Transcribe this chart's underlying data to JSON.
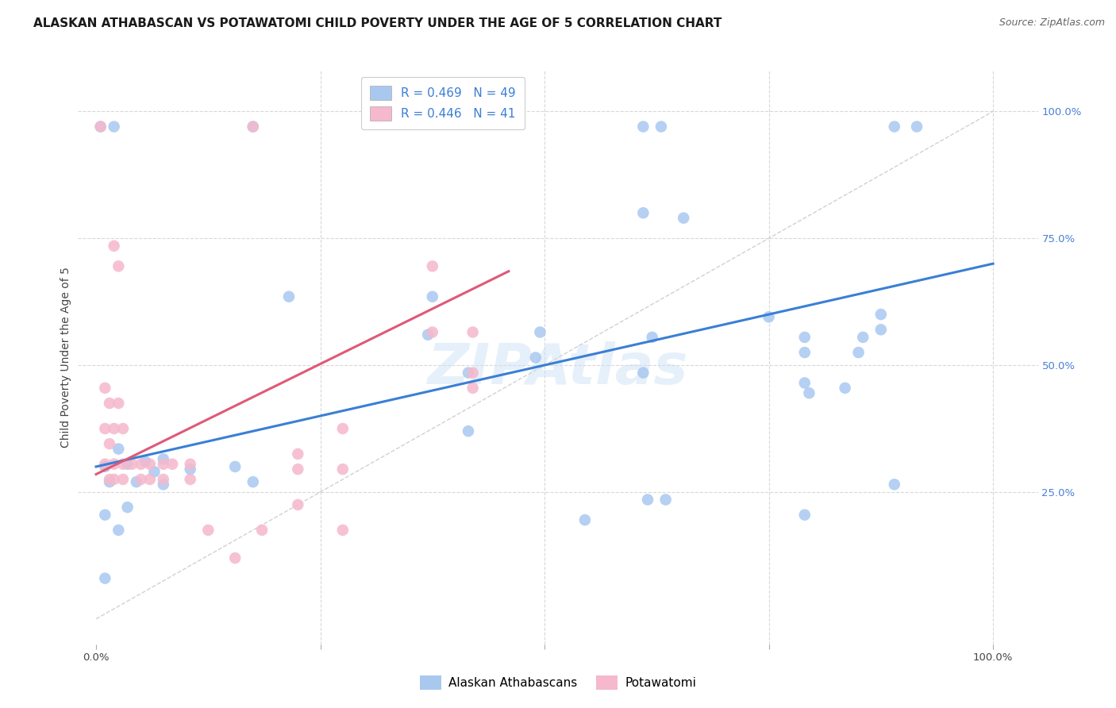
{
  "title": "ALASKAN ATHABASCAN VS POTAWATOMI CHILD POVERTY UNDER THE AGE OF 5 CORRELATION CHART",
  "source": "Source: ZipAtlas.com",
  "ylabel": "Child Poverty Under the Age of 5",
  "background_color": "#ffffff",
  "watermark": "ZIPAtlas",
  "legend_labels": [
    "Alaskan Athabascans",
    "Potawatomi"
  ],
  "legend_r_n": [
    {
      "R": "0.469",
      "N": "49"
    },
    {
      "R": "0.446",
      "N": "41"
    }
  ],
  "blue_color": "#a8c8f0",
  "pink_color": "#f5b8cc",
  "blue_line_color": "#3a7fd5",
  "pink_line_color": "#e05878",
  "diag_line_color": "#cccccc",
  "grid_color": "#d8d8d8",
  "xlim": [
    -0.02,
    1.05
  ],
  "ylim": [
    -0.05,
    1.08
  ],
  "blue_line_x": [
    0.0,
    1.0
  ],
  "blue_line_y": [
    0.3,
    0.7
  ],
  "pink_line_x": [
    0.0,
    0.46
  ],
  "pink_line_y": [
    0.285,
    0.685
  ],
  "blue_scatter": [
    [
      0.005,
      0.97
    ],
    [
      0.02,
      0.97
    ],
    [
      0.175,
      0.97
    ],
    [
      0.61,
      0.97
    ],
    [
      0.63,
      0.97
    ],
    [
      0.89,
      0.97
    ],
    [
      0.915,
      0.97
    ],
    [
      0.61,
      0.8
    ],
    [
      0.655,
      0.79
    ],
    [
      0.215,
      0.635
    ],
    [
      0.375,
      0.635
    ],
    [
      0.37,
      0.56
    ],
    [
      0.495,
      0.565
    ],
    [
      0.49,
      0.515
    ],
    [
      0.415,
      0.485
    ],
    [
      0.61,
      0.485
    ],
    [
      0.75,
      0.595
    ],
    [
      0.62,
      0.555
    ],
    [
      0.79,
      0.555
    ],
    [
      0.855,
      0.555
    ],
    [
      0.875,
      0.57
    ],
    [
      0.79,
      0.525
    ],
    [
      0.85,
      0.525
    ],
    [
      0.835,
      0.455
    ],
    [
      0.875,
      0.6
    ],
    [
      0.615,
      0.235
    ],
    [
      0.635,
      0.235
    ],
    [
      0.79,
      0.465
    ],
    [
      0.795,
      0.445
    ],
    [
      0.89,
      0.265
    ],
    [
      0.545,
      0.195
    ],
    [
      0.79,
      0.205
    ],
    [
      0.415,
      0.37
    ],
    [
      0.01,
      0.3
    ],
    [
      0.025,
      0.335
    ],
    [
      0.035,
      0.305
    ],
    [
      0.01,
      0.205
    ],
    [
      0.025,
      0.175
    ],
    [
      0.035,
      0.22
    ],
    [
      0.015,
      0.27
    ],
    [
      0.045,
      0.27
    ],
    [
      0.055,
      0.31
    ],
    [
      0.065,
      0.29
    ],
    [
      0.075,
      0.315
    ],
    [
      0.075,
      0.265
    ],
    [
      0.105,
      0.295
    ],
    [
      0.155,
      0.3
    ],
    [
      0.175,
      0.27
    ],
    [
      0.01,
      0.08
    ]
  ],
  "pink_scatter": [
    [
      0.005,
      0.97
    ],
    [
      0.175,
      0.97
    ],
    [
      0.375,
      0.695
    ],
    [
      0.02,
      0.735
    ],
    [
      0.025,
      0.695
    ],
    [
      0.375,
      0.565
    ],
    [
      0.42,
      0.565
    ],
    [
      0.42,
      0.485
    ],
    [
      0.42,
      0.455
    ],
    [
      0.01,
      0.455
    ],
    [
      0.015,
      0.425
    ],
    [
      0.025,
      0.425
    ],
    [
      0.01,
      0.375
    ],
    [
      0.015,
      0.345
    ],
    [
      0.02,
      0.375
    ],
    [
      0.03,
      0.375
    ],
    [
      0.01,
      0.305
    ],
    [
      0.015,
      0.275
    ],
    [
      0.02,
      0.305
    ],
    [
      0.02,
      0.275
    ],
    [
      0.03,
      0.305
    ],
    [
      0.03,
      0.275
    ],
    [
      0.04,
      0.305
    ],
    [
      0.05,
      0.305
    ],
    [
      0.06,
      0.305
    ],
    [
      0.05,
      0.275
    ],
    [
      0.06,
      0.275
    ],
    [
      0.075,
      0.305
    ],
    [
      0.085,
      0.305
    ],
    [
      0.075,
      0.275
    ],
    [
      0.105,
      0.305
    ],
    [
      0.105,
      0.275
    ],
    [
      0.125,
      0.175
    ],
    [
      0.155,
      0.12
    ],
    [
      0.185,
      0.175
    ],
    [
      0.225,
      0.295
    ],
    [
      0.225,
      0.325
    ],
    [
      0.225,
      0.225
    ],
    [
      0.275,
      0.295
    ],
    [
      0.275,
      0.375
    ],
    [
      0.275,
      0.175
    ]
  ],
  "title_fontsize": 11,
  "source_fontsize": 9,
  "axis_label_fontsize": 10,
  "tick_fontsize": 9.5,
  "legend_fontsize": 11,
  "watermark_fontsize": 52,
  "watermark_color": "#c8dff5",
  "watermark_alpha": 0.45,
  "marker_size": 110
}
